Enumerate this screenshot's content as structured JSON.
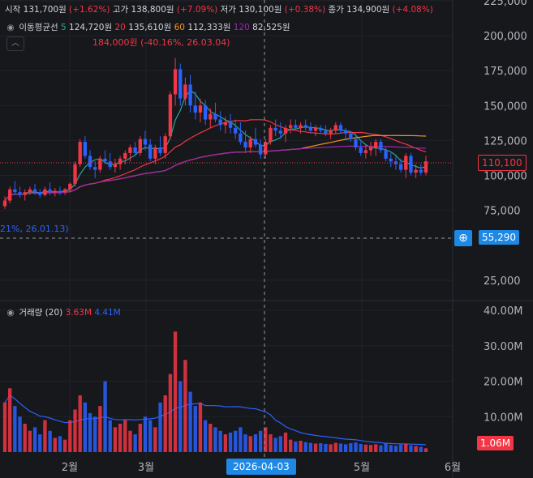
{
  "ohlc": {
    "open_label": "시작",
    "open_value": "131,700원",
    "open_change": "(+1.62%)",
    "high_label": "고가",
    "high_value": "138,800원",
    "high_change": "(+7.09%)",
    "low_label": "저가",
    "low_value": "130,100원",
    "low_change": "(+0.38%)",
    "close_label": "종가",
    "close_value": "134,900원",
    "close_change": "(+4.08%)"
  },
  "ma_legend": {
    "label": "이동평균선",
    "items": [
      {
        "period": "5",
        "value": "124,720원",
        "color": "#26a69a"
      },
      {
        "period": "20",
        "value": "135,610원",
        "color": "#f23645"
      },
      {
        "period": "60",
        "value": "112,333원",
        "color": "#f7931a"
      },
      {
        "period": "120",
        "value": "82,525원",
        "color": "#9c27b0"
      }
    ]
  },
  "volume_legend": {
    "label": "거래량 (20)",
    "value_red": "3.63M",
    "value_blue": "4.41M"
  },
  "annotations": {
    "high_text": "184,000원 (-40.16%, 26.03.04)",
    "low_text": "21%, 26.01.13)"
  },
  "price_badges": {
    "last_price": "110,100",
    "crosshair_price": "55,290",
    "last_volume": "1.06M",
    "crosshair_date": "2026-04-03"
  },
  "colors": {
    "up": "#f23645",
    "down": "#2962ff",
    "background": "#17181c",
    "badge_blue": "#1e88e5"
  },
  "chart_data": {
    "type": "candlestick",
    "price_axis": {
      "ticks": [
        "225,000",
        "200,000",
        "175,000",
        "150,000",
        "125,000",
        "100,000",
        "75,000",
        "25,000"
      ],
      "ylim": [
        0,
        230000
      ]
    },
    "volume_axis": {
      "ticks": [
        "40.00M",
        "30.00M",
        "20.00M",
        "10.00M"
      ],
      "ylim": [
        0,
        40000000
      ]
    },
    "x_labels": [
      "2월",
      "3월",
      "5월",
      "6월"
    ],
    "candles": [
      [
        78000,
        85000,
        76000,
        82000,
        14000000
      ],
      [
        82000,
        92000,
        80000,
        90000,
        18000000
      ],
      [
        90000,
        96000,
        86000,
        88000,
        13000000
      ],
      [
        88000,
        92000,
        84000,
        86000,
        10000000
      ],
      [
        86000,
        90000,
        82000,
        88000,
        8000000
      ],
      [
        88000,
        92000,
        86000,
        90000,
        6000000
      ],
      [
        90000,
        94000,
        86000,
        88000,
        7000000
      ],
      [
        88000,
        90000,
        84000,
        86000,
        5000000
      ],
      [
        86000,
        92000,
        85000,
        90000,
        9000000
      ],
      [
        90000,
        95000,
        86000,
        88000,
        6000000
      ],
      [
        88000,
        91000,
        85000,
        89000,
        4000000
      ],
      [
        89000,
        92000,
        86000,
        88000,
        4500000
      ],
      [
        88000,
        91000,
        86000,
        90000,
        3500000
      ],
      [
        90000,
        95000,
        88000,
        94000,
        9000000
      ],
      [
        94000,
        110000,
        92000,
        108000,
        12000000
      ],
      [
        108000,
        126000,
        106000,
        124000,
        16000000
      ],
      [
        124000,
        128000,
        112000,
        114000,
        14000000
      ],
      [
        114000,
        118000,
        104000,
        106000,
        11000000
      ],
      [
        106000,
        110000,
        98000,
        104000,
        10000000
      ],
      [
        104000,
        114000,
        102000,
        112000,
        13000000
      ],
      [
        112000,
        118000,
        108000,
        110000,
        20000000
      ],
      [
        110000,
        116000,
        104000,
        106000,
        9000000
      ],
      [
        106000,
        112000,
        102000,
        108000,
        7000000
      ],
      [
        108000,
        114000,
        104000,
        112000,
        8000000
      ],
      [
        112000,
        118000,
        108000,
        116000,
        9000000
      ],
      [
        116000,
        122000,
        110000,
        120000,
        6000000
      ],
      [
        120000,
        124000,
        114000,
        116000,
        5000000
      ],
      [
        116000,
        128000,
        114000,
        126000,
        8000000
      ],
      [
        126000,
        132000,
        118000,
        122000,
        10000000
      ],
      [
        122000,
        126000,
        110000,
        112000,
        9000000
      ],
      [
        112000,
        122000,
        108000,
        120000,
        7000000
      ],
      [
        120000,
        128000,
        114000,
        116000,
        14000000
      ],
      [
        116000,
        130000,
        112000,
        128000,
        16000000
      ],
      [
        128000,
        160000,
        126000,
        158000,
        22000000
      ],
      [
        158000,
        184000,
        150000,
        176000,
        34000000
      ],
      [
        176000,
        180000,
        150000,
        155000,
        20000000
      ],
      [
        155000,
        170000,
        150000,
        165000,
        26000000
      ],
      [
        165000,
        172000,
        145000,
        150000,
        17000000
      ],
      [
        150000,
        160000,
        140000,
        145000,
        13000000
      ],
      [
        145000,
        155000,
        138000,
        150000,
        14000000
      ],
      [
        150000,
        154000,
        136000,
        140000,
        9000000
      ],
      [
        140000,
        148000,
        134000,
        144000,
        8000000
      ],
      [
        144000,
        152000,
        138000,
        140000,
        7000000
      ],
      [
        140000,
        146000,
        132000,
        136000,
        6000000
      ],
      [
        136000,
        142000,
        130000,
        138000,
        5000000
      ],
      [
        138000,
        144000,
        130000,
        134000,
        5500000
      ],
      [
        134000,
        140000,
        126000,
        130000,
        6000000
      ],
      [
        130000,
        138000,
        122000,
        124000,
        7000000
      ],
      [
        124000,
        132000,
        116000,
        120000,
        5000000
      ],
      [
        120000,
        128000,
        116000,
        126000,
        4500000
      ],
      [
        126000,
        134000,
        120000,
        122000,
        5000000
      ],
      [
        122000,
        126000,
        112000,
        115000,
        6000000
      ],
      [
        115000,
        126000,
        112000,
        124000,
        7000000
      ],
      [
        124000,
        136000,
        122000,
        134000,
        5000000
      ],
      [
        134000,
        140000,
        128000,
        132000,
        4000000
      ],
      [
        132000,
        138000,
        126000,
        130000,
        4500000
      ],
      [
        130000,
        136000,
        124000,
        134000,
        5500000
      ],
      [
        134000,
        140000,
        130000,
        136000,
        3500000
      ],
      [
        136000,
        140000,
        132000,
        134000,
        3000000
      ],
      [
        134000,
        138000,
        130000,
        136000,
        3200000
      ],
      [
        136000,
        140000,
        132000,
        134000,
        2800000
      ],
      [
        134000,
        138000,
        130000,
        132000,
        2600000
      ],
      [
        132000,
        136000,
        128000,
        134000,
        2400000
      ],
      [
        134000,
        136000,
        130000,
        132000,
        2500000
      ],
      [
        132000,
        136000,
        128000,
        130000,
        2300000
      ],
      [
        130000,
        134000,
        126000,
        132000,
        2200000
      ],
      [
        132000,
        138000,
        130000,
        136000,
        2600000
      ],
      [
        136000,
        138000,
        130000,
        132000,
        2400000
      ],
      [
        132000,
        134000,
        126000,
        130000,
        2200000
      ],
      [
        130000,
        132000,
        124000,
        126000,
        2500000
      ],
      [
        126000,
        130000,
        118000,
        120000,
        2700000
      ],
      [
        120000,
        124000,
        114000,
        116000,
        2300000
      ],
      [
        116000,
        122000,
        112000,
        118000,
        2100000
      ],
      [
        118000,
        124000,
        114000,
        120000,
        2000000
      ],
      [
        120000,
        126000,
        114000,
        124000,
        2200000
      ],
      [
        124000,
        126000,
        116000,
        118000,
        1900000
      ],
      [
        118000,
        120000,
        110000,
        112000,
        2400000
      ],
      [
        112000,
        116000,
        106000,
        110000,
        2000000
      ],
      [
        110000,
        114000,
        104000,
        108000,
        1800000
      ],
      [
        108000,
        112000,
        102000,
        104000,
        2100000
      ],
      [
        104000,
        116000,
        98000,
        114000,
        2300000
      ],
      [
        114000,
        116000,
        100000,
        102000,
        1900000
      ],
      [
        102000,
        108000,
        98000,
        104000,
        1700000
      ],
      [
        104000,
        108000,
        100000,
        102000,
        1500000
      ],
      [
        102000,
        114000,
        100000,
        110100,
        1060000
      ]
    ]
  }
}
